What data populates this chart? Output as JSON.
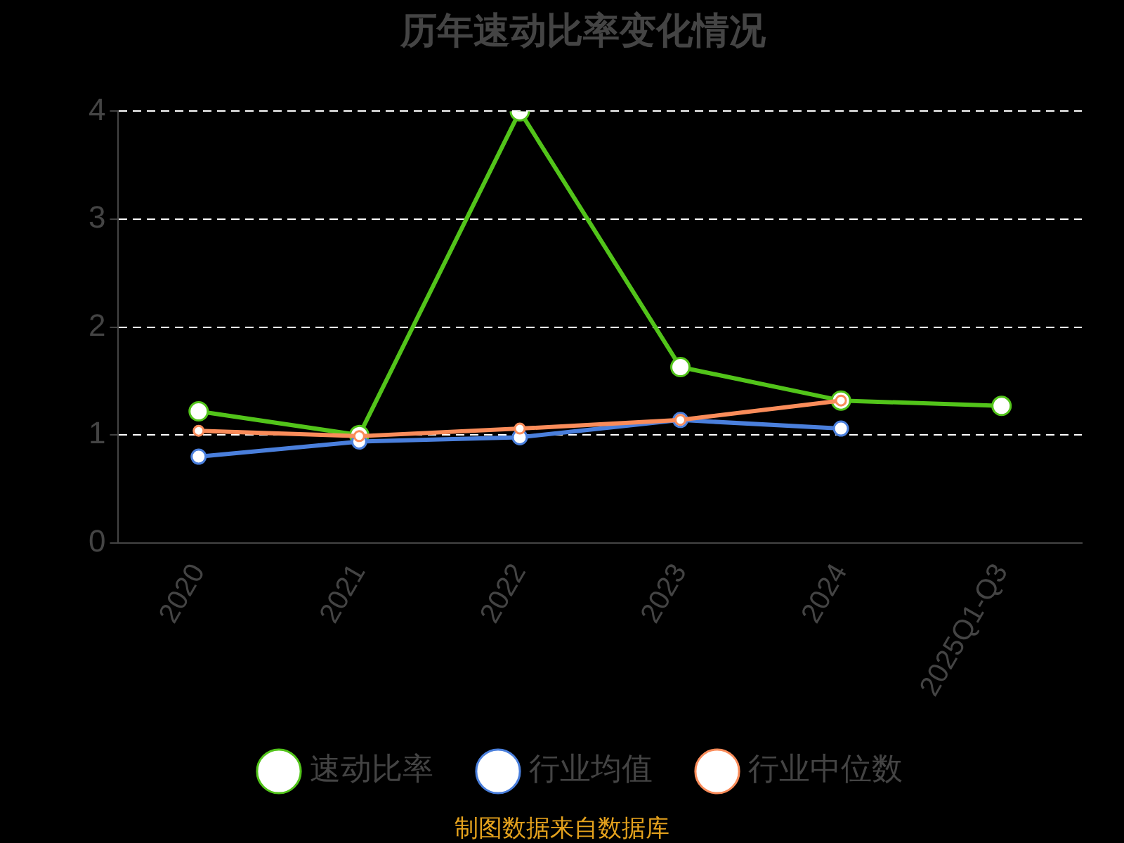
{
  "chart_data": {
    "type": "line",
    "title": "历年速动比率变化情况",
    "categories": [
      "2020",
      "2021",
      "2022",
      "2023",
      "2024",
      "2025Q1-Q3"
    ],
    "series": [
      {
        "name": "速动比率",
        "color": "#52c41a",
        "values": [
          1.22,
          1.0,
          4.0,
          1.63,
          1.32,
          1.27
        ]
      },
      {
        "name": "行业均值",
        "color": "#4a7fdc",
        "values": [
          0.8,
          0.94,
          0.98,
          1.14,
          1.06,
          null
        ]
      },
      {
        "name": "行业中位数",
        "color": "#fa8c5a",
        "values": [
          1.04,
          0.99,
          1.06,
          1.14,
          1.32,
          null
        ]
      }
    ],
    "ylim": [
      0,
      4
    ],
    "yticks": [
      0,
      1,
      2,
      3,
      4
    ],
    "grid": "y",
    "legend": "bottom",
    "marker": "circle",
    "line_style": "solid",
    "annotations": [
      "制图数据来自数据库"
    ]
  }
}
